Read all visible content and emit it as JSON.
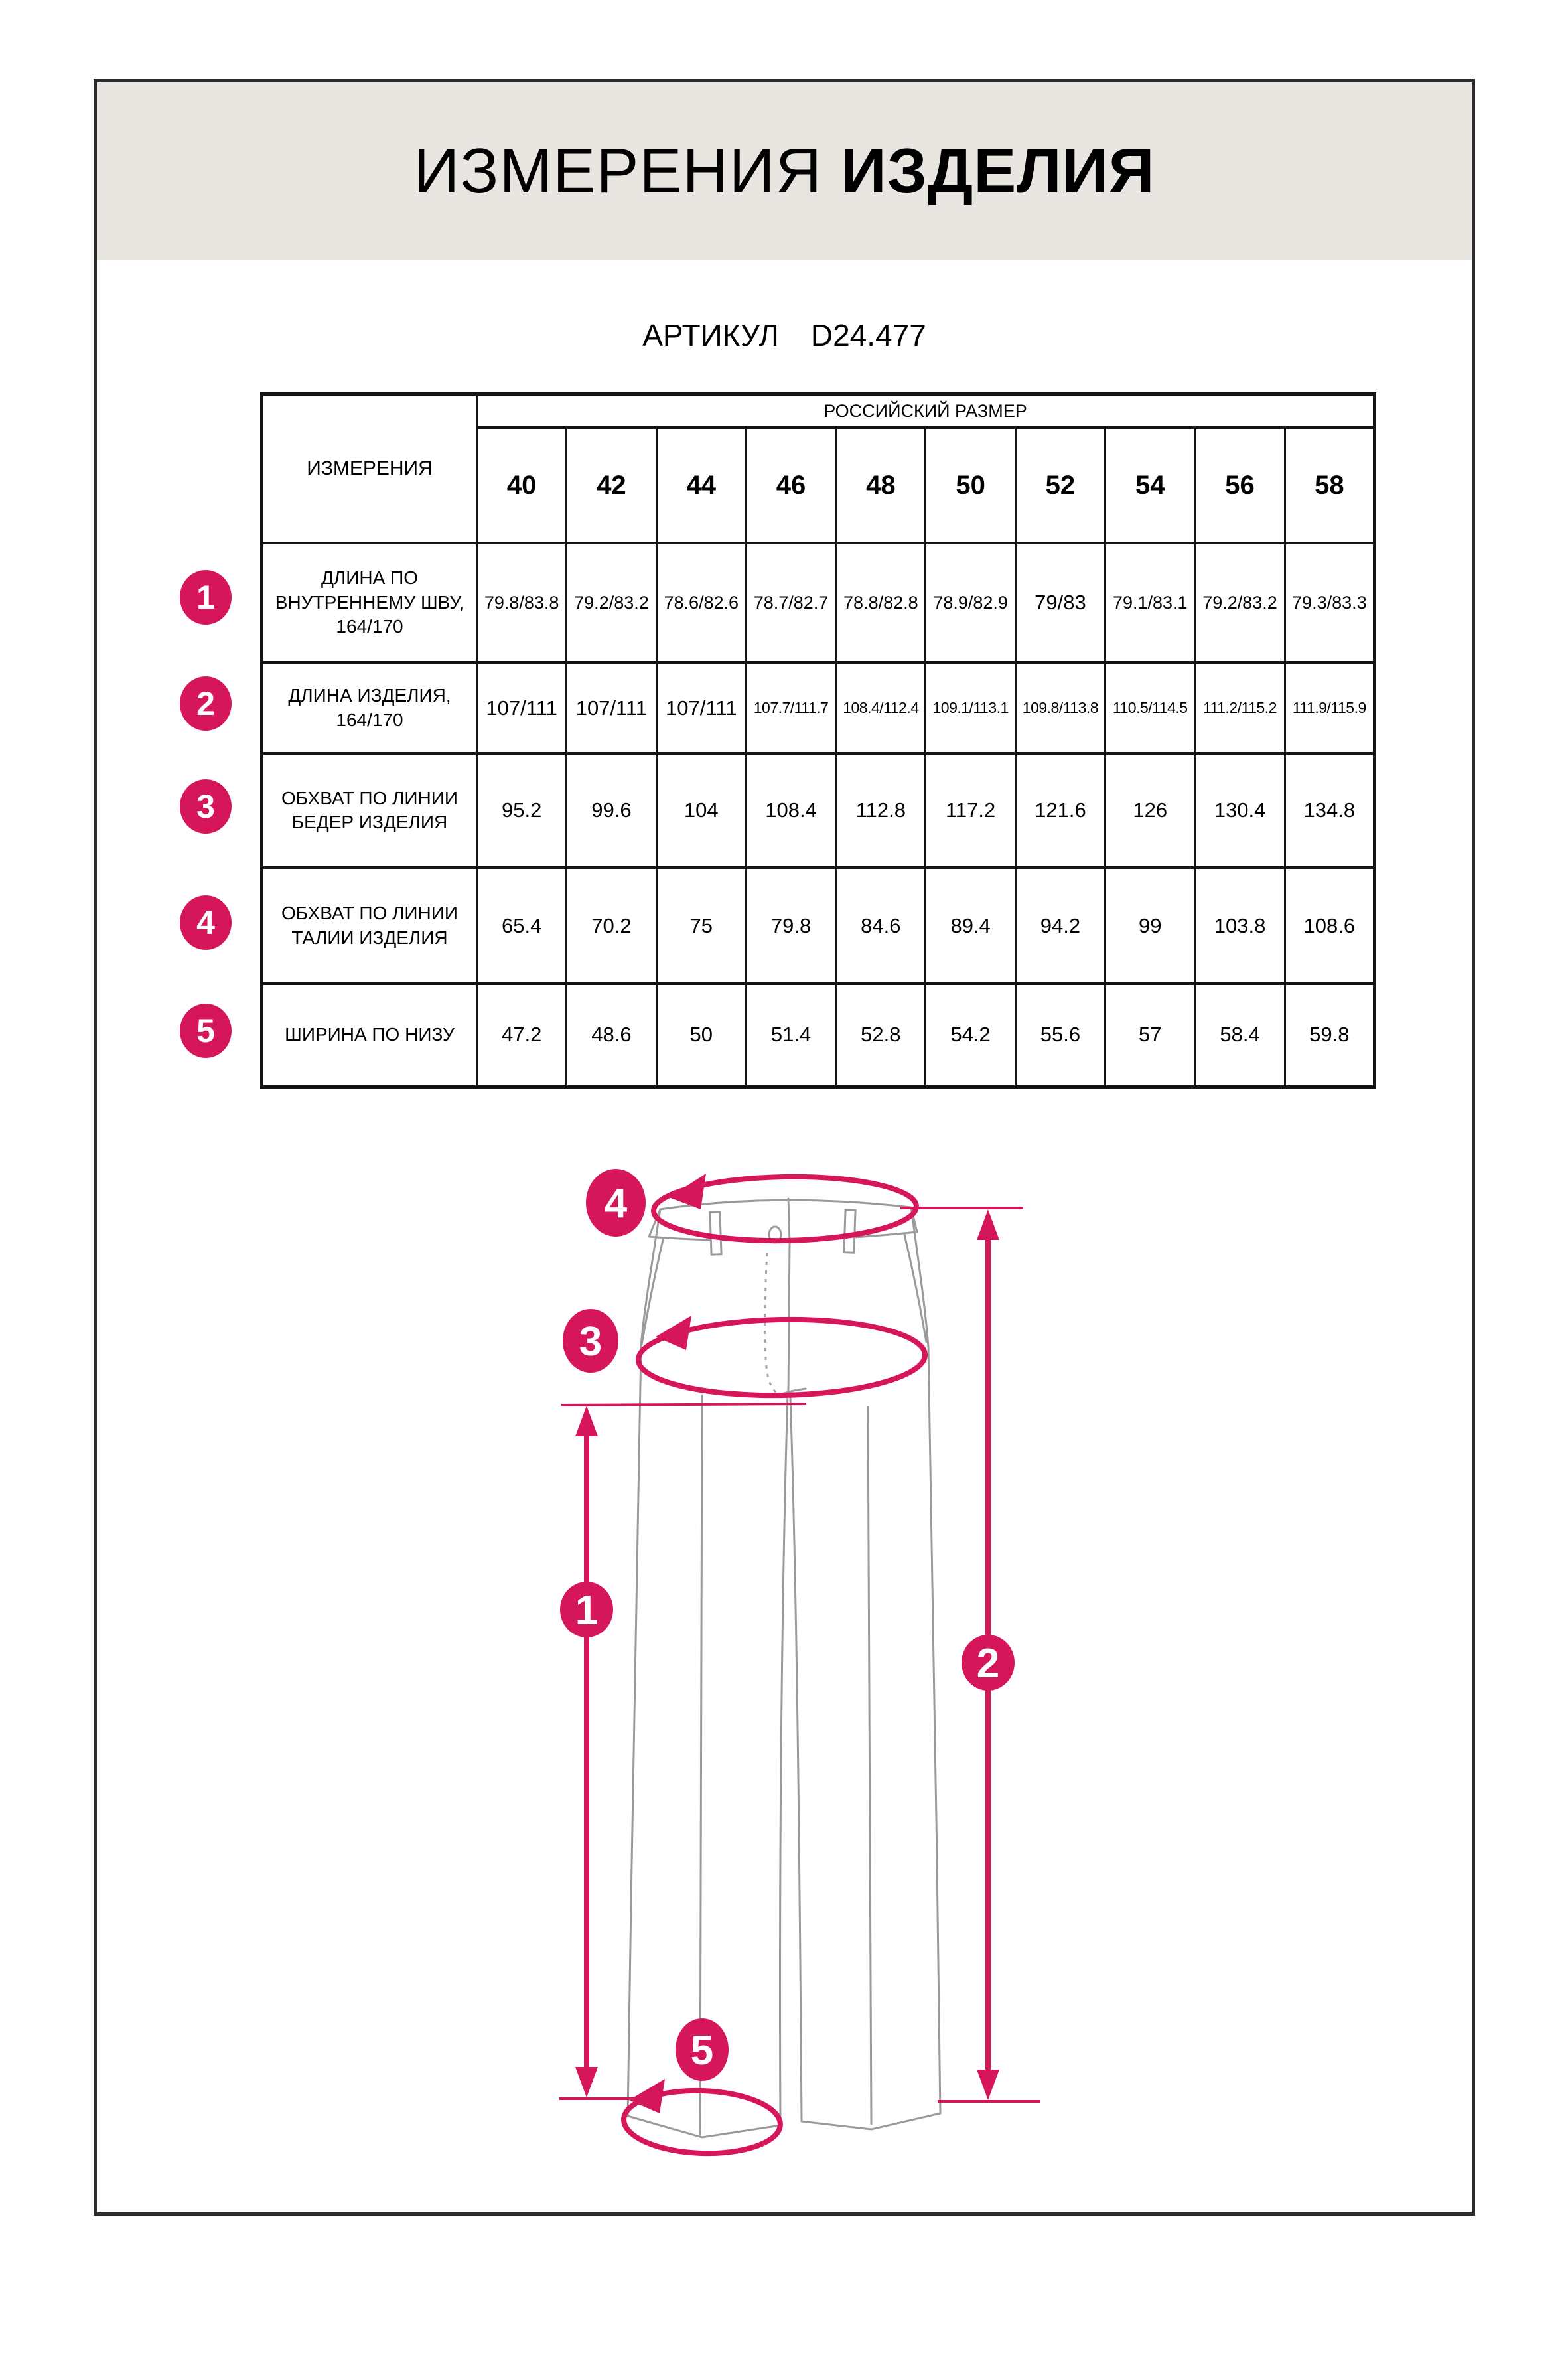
{
  "colors": {
    "accent": "#d6165b",
    "trouser_line": "#9a9a9a",
    "title_band": "#e9e6e2",
    "frame": "#2b2b2b"
  },
  "header": {
    "title_regular": "ИЗМЕРЕНИЯ ",
    "title_bold": "ИЗДЕЛИЯ",
    "article_label": "АРТИКУЛ",
    "article_value": "D24.477"
  },
  "table": {
    "measurements_header": "ИЗМЕРЕНИЯ",
    "size_header": "РОССИЙСКИЙ РАЗМЕР",
    "sizes": [
      "40",
      "42",
      "44",
      "46",
      "48",
      "50",
      "52",
      "54",
      "56",
      "58"
    ],
    "rows": [
      {
        "num": "1",
        "label": "ДЛИНА ПО ВНУТРЕННЕМУ ШВУ, 164/170",
        "values": [
          "79.8/83.8",
          "79.2/83.2",
          "78.6/82.6",
          "78.7/82.7",
          "78.8/82.8",
          "78.9/82.9",
          "79/83",
          "79.1/83.1",
          "79.2/83.2",
          "79.3/83.3"
        ]
      },
      {
        "num": "2",
        "label": "ДЛИНА ИЗДЕЛИЯ, 164/170",
        "values": [
          "107/111",
          "107/111",
          "107/111",
          "107.7/111.7",
          "108.4/112.4",
          "109.1/113.1",
          "109.8/113.8",
          "110.5/114.5",
          "111.2/115.2",
          "111.9/115.9"
        ]
      },
      {
        "num": "3",
        "label": "ОБХВАТ ПО ЛИНИИ БЕДЕР ИЗДЕЛИЯ",
        "values": [
          "95.2",
          "99.6",
          "104",
          "108.4",
          "112.8",
          "117.2",
          "121.6",
          "126",
          "130.4",
          "134.8"
        ]
      },
      {
        "num": "4",
        "label": "ОБХВАТ ПО ЛИНИИ ТАЛИИ ИЗДЕЛИЯ",
        "values": [
          "65.4",
          "70.2",
          "75",
          "79.8",
          "84.6",
          "89.4",
          "94.2",
          "99",
          "103.8",
          "108.6"
        ]
      },
      {
        "num": "5",
        "label": "ШИРИНА ПО НИЗУ",
        "values": [
          "47.2",
          "48.6",
          "50",
          "51.4",
          "52.8",
          "54.2",
          "55.6",
          "57",
          "58.4",
          "59.8"
        ]
      }
    ]
  },
  "diagram": {
    "badges": {
      "b1": "1",
      "b2": "2",
      "b3": "3",
      "b4": "4",
      "b5": "5"
    }
  }
}
